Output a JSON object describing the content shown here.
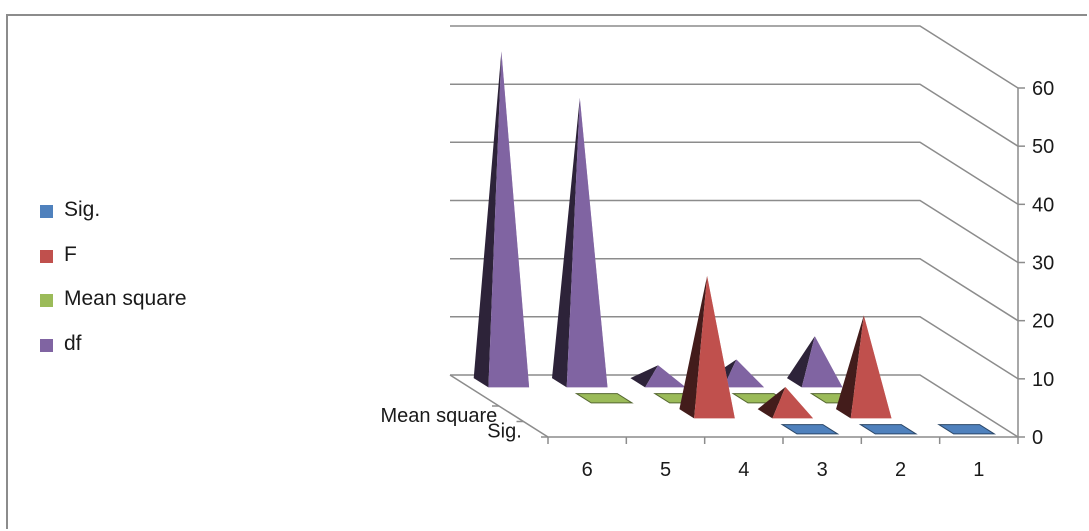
{
  "chart_data": {
    "type": "bar",
    "variant": "3d-pyramid",
    "title": "",
    "categories": [
      "6",
      "5",
      "4",
      "3",
      "2",
      "1"
    ],
    "depth_categories": [
      "Sig.",
      "Mean square"
    ],
    "series": [
      {
        "name": "Sig.",
        "color": "#4f81bd",
        "values": [
          0,
          0,
          0,
          0.3,
          0.3,
          0.3
        ]
      },
      {
        "name": "F",
        "color": "#c0504d",
        "values": [
          0,
          0,
          23.7,
          4.6,
          16.9,
          0
        ]
      },
      {
        "name": "Mean square",
        "color": "#9bbb59",
        "values": [
          0,
          0.3,
          0.3,
          0.3,
          0.3,
          0
        ]
      },
      {
        "name": "df",
        "color": "#8064a2",
        "values": [
          57,
          49,
          3,
          4,
          8,
          0
        ]
      }
    ],
    "y_ticks": [
      "0",
      "10",
      "20",
      "30",
      "40",
      "50",
      "60"
    ],
    "ylim": [
      0,
      60
    ],
    "legend_position": "left",
    "grid": true
  }
}
